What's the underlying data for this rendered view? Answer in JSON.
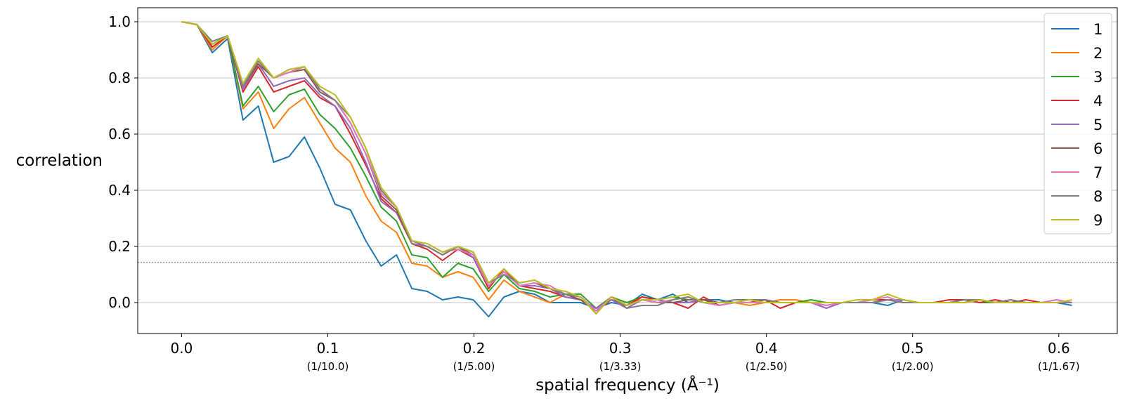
{
  "chart_data": {
    "type": "line",
    "title": "",
    "xlabel": "spatial frequency",
    "xlabel_unit": "(Å⁻¹)",
    "ylabel": "correlation",
    "xlim": [
      -0.03,
      0.64
    ],
    "ylim": [
      -0.11,
      1.05
    ],
    "grid": "horizontal",
    "legend_position": "top-right",
    "threshold": 0.143,
    "threshold_style": "dotted",
    "xticks": [
      0.0,
      0.1,
      0.2,
      0.3,
      0.4,
      0.5,
      0.6
    ],
    "xtick_labels": [
      "0.0",
      "0.1",
      "0.2",
      "0.3",
      "0.4",
      "0.5",
      "0.6"
    ],
    "xtick_sublabels": [
      "",
      "(1/10.0)",
      "(1/5.00)",
      "(1/3.33)",
      "(1/2.50)",
      "(1/2.00)",
      "(1/1.67)"
    ],
    "yticks": [
      0.0,
      0.2,
      0.4,
      0.6,
      0.8,
      1.0
    ],
    "ytick_labels": [
      "0.0",
      "0.2",
      "0.4",
      "0.6",
      "0.8",
      "1.0"
    ],
    "x": [
      0.0,
      0.0105,
      0.021,
      0.0315,
      0.042,
      0.0525,
      0.063,
      0.0735,
      0.084,
      0.0945,
      0.105,
      0.1155,
      0.126,
      0.1365,
      0.147,
      0.1575,
      0.168,
      0.1785,
      0.189,
      0.1995,
      0.21,
      0.2205,
      0.231,
      0.2415,
      0.252,
      0.2625,
      0.273,
      0.2835,
      0.294,
      0.3045,
      0.315,
      0.3255,
      0.336,
      0.3465,
      0.357,
      0.3675,
      0.378,
      0.3885,
      0.399,
      0.4095,
      0.42,
      0.4305,
      0.441,
      0.4515,
      0.462,
      0.4725,
      0.483,
      0.4935,
      0.504,
      0.5145,
      0.525,
      0.5355,
      0.546,
      0.5565,
      0.567,
      0.5775,
      0.588,
      0.5985,
      0.609
    ],
    "series": [
      {
        "name": "1",
        "color": "#1f77b4",
        "values": [
          1.0,
          0.99,
          0.89,
          0.94,
          0.65,
          0.7,
          0.5,
          0.52,
          0.59,
          0.48,
          0.35,
          0.33,
          0.22,
          0.13,
          0.17,
          0.05,
          0.04,
          0.01,
          0.02,
          0.01,
          -0.05,
          0.02,
          0.04,
          0.03,
          0.0,
          0.0,
          0.0,
          -0.02,
          0.0,
          -0.01,
          0.03,
          0.01,
          0.03,
          0.0,
          0.01,
          0.01,
          0.0,
          0.0,
          0.01,
          0.0,
          0.0,
          0.0,
          0.0,
          0.0,
          0.0,
          0.0,
          -0.01,
          0.01,
          0.0,
          0.0,
          0.0,
          0.0,
          0.01,
          0.0,
          0.0,
          0.0,
          0.0,
          0.0,
          -0.01
        ]
      },
      {
        "name": "2",
        "color": "#ff7f0e",
        "values": [
          1.0,
          0.99,
          0.9,
          0.95,
          0.69,
          0.75,
          0.62,
          0.69,
          0.73,
          0.64,
          0.55,
          0.5,
          0.38,
          0.29,
          0.25,
          0.14,
          0.13,
          0.09,
          0.11,
          0.09,
          0.01,
          0.08,
          0.04,
          0.02,
          0.0,
          0.03,
          0.02,
          -0.03,
          0.02,
          0.0,
          0.01,
          0.0,
          0.01,
          0.02,
          0.0,
          0.0,
          0.0,
          -0.01,
          0.0,
          0.01,
          0.01,
          0.0,
          0.0,
          0.0,
          0.0,
          0.0,
          0.01,
          0.01,
          0.0,
          0.0,
          0.0,
          0.0,
          0.01,
          0.0,
          0.0,
          0.0,
          0.0,
          0.0,
          0.0
        ]
      },
      {
        "name": "3",
        "color": "#2ca02c",
        "values": [
          1.0,
          0.99,
          0.91,
          0.95,
          0.7,
          0.77,
          0.68,
          0.74,
          0.76,
          0.67,
          0.62,
          0.55,
          0.45,
          0.34,
          0.29,
          0.17,
          0.16,
          0.09,
          0.14,
          0.12,
          0.04,
          0.1,
          0.05,
          0.04,
          0.02,
          0.03,
          0.03,
          -0.02,
          0.02,
          0.0,
          0.02,
          0.01,
          0.02,
          0.01,
          0.01,
          -0.01,
          0.0,
          0.0,
          0.01,
          0.0,
          0.0,
          0.01,
          0.0,
          0.0,
          0.0,
          0.0,
          0.01,
          0.0,
          0.0,
          0.0,
          0.0,
          0.01,
          0.0,
          0.0,
          0.0,
          0.0,
          0.0,
          0.0,
          0.0
        ]
      },
      {
        "name": "4",
        "color": "#d62728",
        "values": [
          1.0,
          0.99,
          0.91,
          0.95,
          0.75,
          0.84,
          0.75,
          0.77,
          0.79,
          0.73,
          0.7,
          0.6,
          0.49,
          0.37,
          0.32,
          0.21,
          0.19,
          0.15,
          0.19,
          0.16,
          0.05,
          0.12,
          0.06,
          0.05,
          0.04,
          0.02,
          0.01,
          -0.03,
          0.01,
          -0.01,
          0.02,
          0.01,
          0.0,
          -0.02,
          0.02,
          -0.01,
          0.0,
          0.0,
          0.01,
          -0.02,
          0.0,
          0.0,
          -0.01,
          0.0,
          0.0,
          0.01,
          0.01,
          0.0,
          0.0,
          0.0,
          0.01,
          0.01,
          0.0,
          0.01,
          0.0,
          0.01,
          0.0,
          0.0,
          0.0
        ]
      },
      {
        "name": "5",
        "color": "#9467bd",
        "values": [
          1.0,
          0.99,
          0.92,
          0.95,
          0.76,
          0.85,
          0.77,
          0.79,
          0.8,
          0.74,
          0.7,
          0.62,
          0.5,
          0.36,
          0.32,
          0.22,
          0.2,
          0.17,
          0.2,
          0.16,
          0.06,
          0.11,
          0.06,
          0.06,
          0.05,
          0.02,
          0.01,
          -0.02,
          0.01,
          -0.02,
          0.01,
          0.01,
          0.0,
          0.0,
          0.01,
          0.0,
          0.0,
          0.0,
          0.0,
          0.0,
          0.0,
          0.0,
          -0.02,
          0.0,
          0.0,
          0.0,
          0.01,
          0.01,
          0.0,
          0.0,
          0.0,
          0.0,
          0.01,
          0.0,
          0.0,
          0.0,
          0.0,
          0.01,
          0.0
        ]
      },
      {
        "name": "6",
        "color": "#8c564b",
        "values": [
          1.0,
          0.99,
          0.92,
          0.95,
          0.77,
          0.85,
          0.8,
          0.82,
          0.83,
          0.75,
          0.72,
          0.64,
          0.53,
          0.38,
          0.33,
          0.21,
          0.2,
          0.17,
          0.2,
          0.17,
          0.06,
          0.11,
          0.06,
          0.07,
          0.05,
          0.03,
          0.01,
          -0.03,
          0.02,
          -0.01,
          0.01,
          0.0,
          0.0,
          0.01,
          0.01,
          0.0,
          0.0,
          0.0,
          0.0,
          0.0,
          0.0,
          0.0,
          0.0,
          0.0,
          0.0,
          0.0,
          0.01,
          0.0,
          0.0,
          0.0,
          0.0,
          0.0,
          0.01,
          0.0,
          0.0,
          0.0,
          0.0,
          0.0,
          0.0
        ]
      },
      {
        "name": "7",
        "color": "#e377c2",
        "values": [
          1.0,
          0.99,
          0.92,
          0.95,
          0.78,
          0.86,
          0.8,
          0.82,
          0.84,
          0.76,
          0.72,
          0.64,
          0.53,
          0.39,
          0.34,
          0.22,
          0.21,
          0.18,
          0.19,
          0.17,
          0.06,
          0.11,
          0.06,
          0.07,
          0.06,
          0.03,
          0.02,
          -0.03,
          0.02,
          -0.01,
          0.01,
          0.0,
          0.01,
          0.02,
          0.0,
          -0.01,
          0.0,
          0.0,
          0.0,
          0.0,
          0.0,
          0.0,
          -0.01,
          0.0,
          0.0,
          0.01,
          0.02,
          0.0,
          0.0,
          0.0,
          0.0,
          0.0,
          0.01,
          0.0,
          0.01,
          0.0,
          0.0,
          0.01,
          0.0
        ]
      },
      {
        "name": "8",
        "color": "#7f7f7f",
        "values": [
          1.0,
          0.99,
          0.93,
          0.95,
          0.77,
          0.86,
          0.8,
          0.83,
          0.84,
          0.76,
          0.72,
          0.66,
          0.55,
          0.4,
          0.34,
          0.21,
          0.2,
          0.17,
          0.2,
          0.18,
          0.07,
          0.1,
          0.07,
          0.08,
          0.05,
          0.03,
          0.02,
          -0.04,
          0.02,
          -0.02,
          -0.01,
          -0.01,
          0.01,
          0.02,
          0.0,
          0.0,
          0.01,
          0.01,
          0.01,
          0.0,
          0.0,
          0.0,
          0.0,
          0.0,
          0.0,
          0.0,
          0.01,
          0.0,
          0.0,
          0.0,
          0.0,
          0.01,
          0.01,
          0.0,
          0.01,
          0.0,
          0.0,
          0.0,
          0.0
        ]
      },
      {
        "name": "9",
        "color": "#bcbd22",
        "values": [
          1.0,
          0.99,
          0.92,
          0.95,
          0.78,
          0.87,
          0.8,
          0.83,
          0.84,
          0.77,
          0.74,
          0.66,
          0.55,
          0.41,
          0.34,
          0.22,
          0.21,
          0.18,
          0.2,
          0.18,
          0.07,
          0.12,
          0.07,
          0.08,
          0.05,
          0.04,
          0.02,
          -0.04,
          0.02,
          -0.01,
          0.01,
          0.01,
          0.02,
          0.03,
          0.0,
          0.0,
          0.0,
          0.01,
          0.0,
          0.0,
          0.0,
          0.0,
          0.0,
          0.0,
          0.01,
          0.01,
          0.03,
          0.01,
          0.0,
          0.0,
          0.0,
          0.0,
          0.01,
          0.0,
          0.0,
          0.0,
          0.0,
          0.0,
          0.01
        ]
      }
    ]
  }
}
